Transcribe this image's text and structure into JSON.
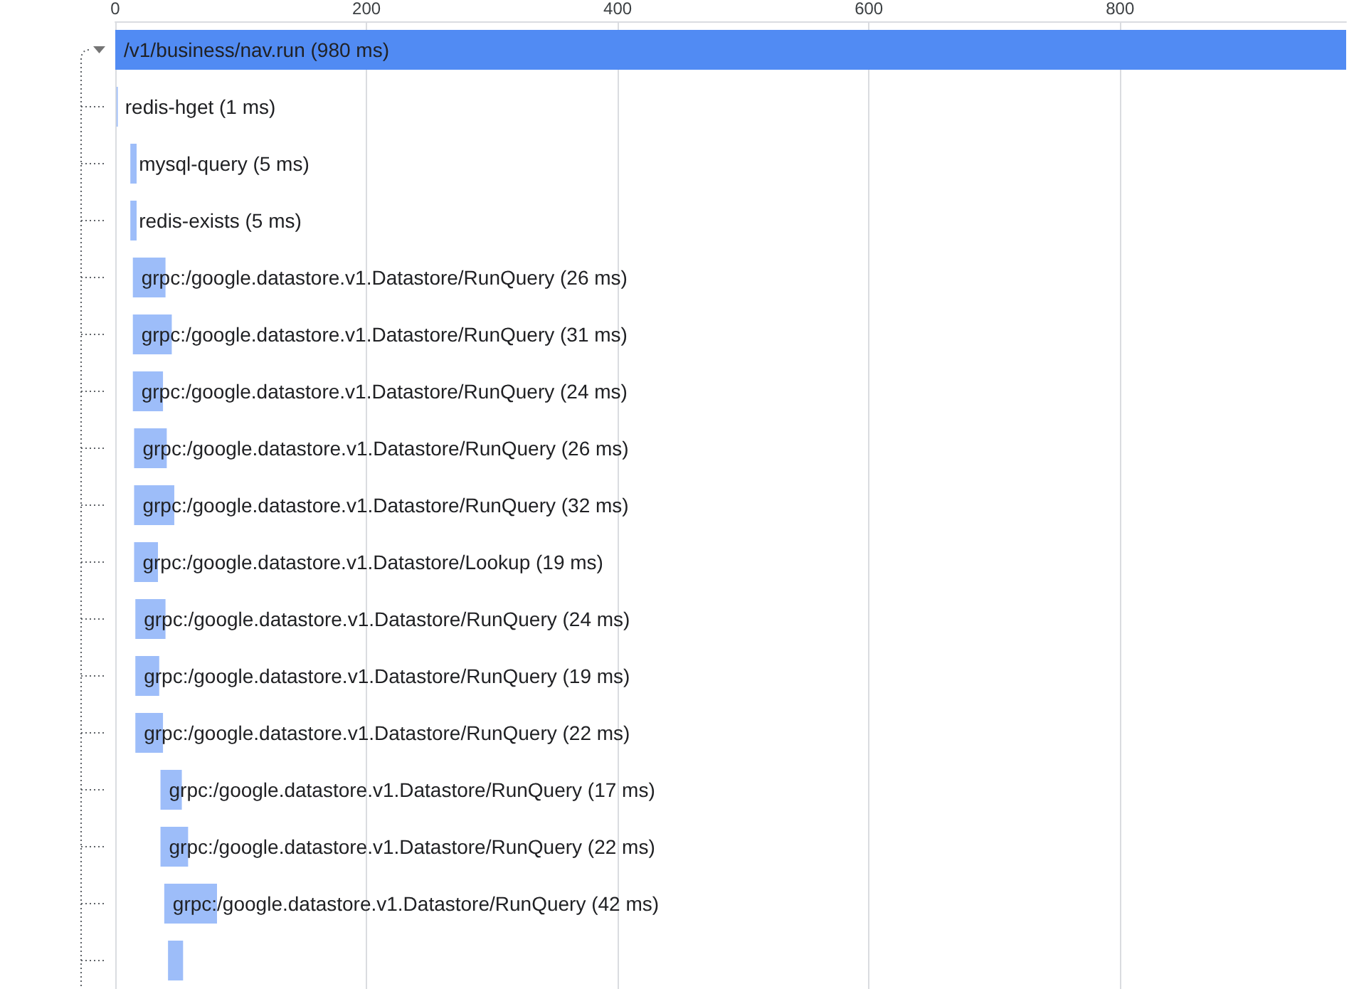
{
  "chart_data": {
    "type": "bar",
    "orientation": "horizontal",
    "categories": [
      "/v1/business/nav.run (980 ms)",
      "redis-hget (1 ms)",
      "mysql-query (5 ms)",
      "redis-exists (5 ms)",
      "grpc:/google.datastore.v1.Datastore/RunQuery (26 ms)",
      "grpc:/google.datastore.v1.Datastore/RunQuery (31 ms)",
      "grpc:/google.datastore.v1.Datastore/RunQuery (24 ms)",
      "grpc:/google.datastore.v1.Datastore/RunQuery (26 ms)",
      "grpc:/google.datastore.v1.Datastore/RunQuery (32 ms)",
      "grpc:/google.datastore.v1.Datastore/Lookup (19 ms)",
      "grpc:/google.datastore.v1.Datastore/RunQuery (24 ms)",
      "grpc:/google.datastore.v1.Datastore/RunQuery (19 ms)",
      "grpc:/google.datastore.v1.Datastore/RunQuery (22 ms)",
      "grpc:/google.datastore.v1.Datastore/RunQuery (17 ms)",
      "grpc:/google.datastore.v1.Datastore/RunQuery (22 ms)",
      "grpc:/google.datastore.v1.Datastore/RunQuery (42 ms)",
      null
    ],
    "values": [
      980,
      1,
      5,
      5,
      26,
      31,
      24,
      26,
      32,
      19,
      24,
      19,
      22,
      17,
      22,
      42,
      12
    ],
    "base": [
      0,
      1,
      12,
      12,
      14,
      14,
      14,
      15,
      15,
      15,
      16,
      16,
      16,
      36,
      36,
      39,
      42
    ],
    "colors": [
      "#518bf3",
      "#9dbdf9",
      "#9dbdf9",
      "#9dbdf9",
      "#9dbdf9",
      "#9dbdf9",
      "#9dbdf9",
      "#9dbdf9",
      "#9dbdf9",
      "#9dbdf9",
      "#9dbdf9",
      "#9dbdf9",
      "#9dbdf9",
      "#9dbdf9",
      "#9dbdf9",
      "#9dbdf9",
      "#9dbdf9"
    ],
    "xlim": [
      0,
      980
    ],
    "xticks": [
      0,
      200,
      400,
      600,
      800
    ],
    "grid": "x",
    "tick_labels": "x"
  }
}
